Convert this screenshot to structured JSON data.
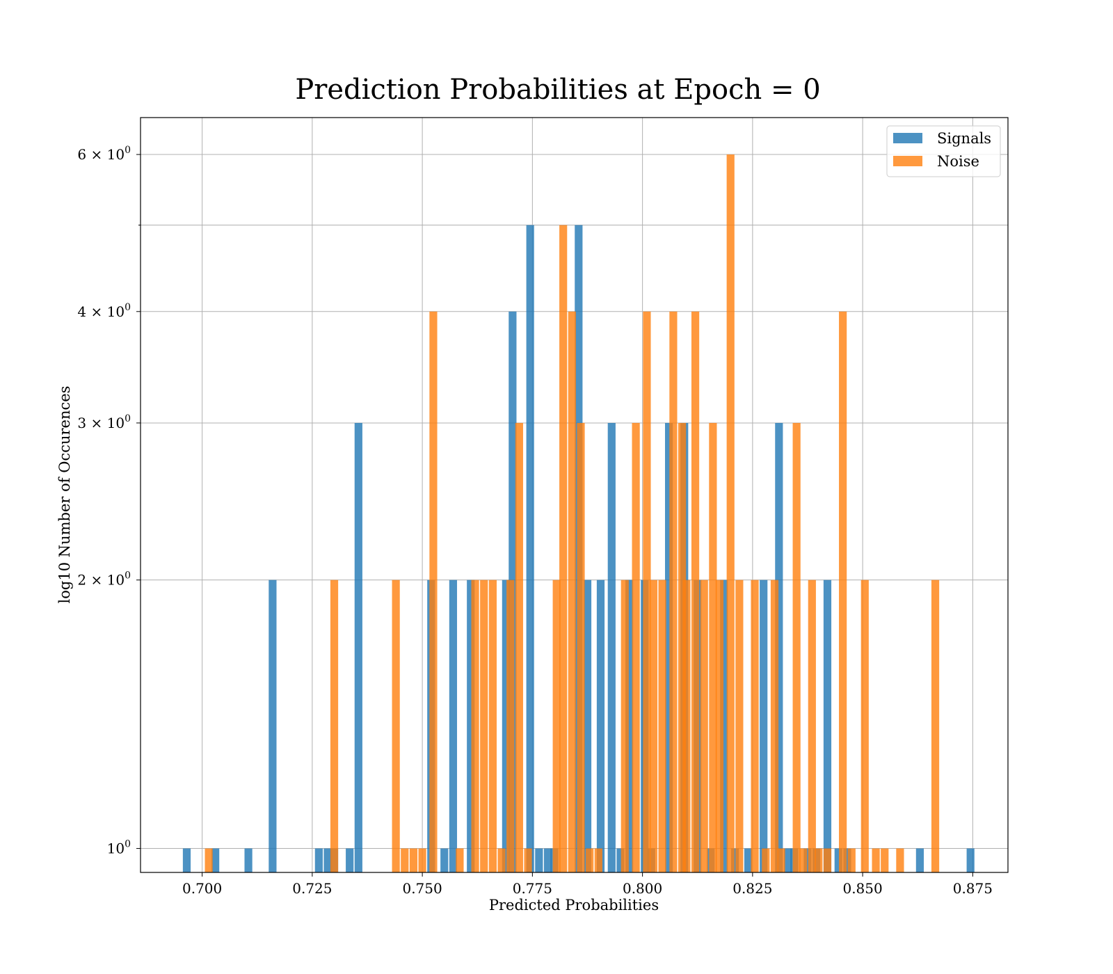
{
  "chart_data": {
    "type": "bar",
    "title": "Prediction Probabilities at Epoch = 0",
    "xlabel": "Predicted Probabilities",
    "ylabel": "log10 Number of Occurences",
    "xlim": [
      0.686,
      0.883
    ],
    "ylim": [
      0.94,
      6.6
    ],
    "yscale": "log",
    "grid": true,
    "legend_position": "top-right",
    "bin_width": 0.00177,
    "x_ticks": [
      {
        "value": 0.7,
        "label": "0.700"
      },
      {
        "value": 0.725,
        "label": "0.725"
      },
      {
        "value": 0.75,
        "label": "0.750"
      },
      {
        "value": 0.775,
        "label": "0.775"
      },
      {
        "value": 0.8,
        "label": "0.800"
      },
      {
        "value": 0.825,
        "label": "0.825"
      },
      {
        "value": 0.85,
        "label": "0.850"
      },
      {
        "value": 0.875,
        "label": "0.875"
      }
    ],
    "y_ticks": [
      {
        "value": 1,
        "base": "10",
        "exp": "0"
      },
      {
        "value": 2,
        "base": "2 × 10",
        "exp": "0"
      },
      {
        "value": 3,
        "base": "3 × 10",
        "exp": "0"
      },
      {
        "value": 4,
        "base": "4 × 10",
        "exp": "0"
      },
      {
        "value": 6,
        "base": "6 × 10",
        "exp": "0"
      }
    ],
    "y_minor_gridlines": [
      5
    ],
    "series": [
      {
        "name": "Signals",
        "color": "#1f77b4",
        "opacity": 0.8,
        "x": [
          0.6965,
          0.703,
          0.7105,
          0.716,
          0.7265,
          0.7285,
          0.73,
          0.7335,
          0.7355,
          0.752,
          0.755,
          0.757,
          0.761,
          0.769,
          0.7705,
          0.7745,
          0.7765,
          0.7785,
          0.78,
          0.7855,
          0.7875,
          0.7905,
          0.793,
          0.795,
          0.797,
          0.8005,
          0.802,
          0.806,
          0.8095,
          0.8125,
          0.8155,
          0.8185,
          0.821,
          0.824,
          0.8275,
          0.831,
          0.833,
          0.8345,
          0.8375,
          0.8395,
          0.842,
          0.8445,
          0.8465,
          0.863,
          0.8745
        ],
        "values": [
          1,
          1,
          1,
          2,
          1,
          1,
          1,
          1,
          3,
          2,
          1,
          2,
          2,
          2,
          4,
          5,
          1,
          1,
          1,
          5,
          2,
          2,
          3,
          1,
          2,
          2,
          1,
          3,
          3,
          2,
          1,
          2,
          1,
          1,
          2,
          3,
          1,
          1,
          1,
          1,
          2,
          1,
          1,
          1,
          1
        ]
      },
      {
        "name": "Noise",
        "color": "#ff7f0e",
        "opacity": 0.8,
        "x": [
          0.7015,
          0.73,
          0.744,
          0.746,
          0.748,
          0.75,
          0.7525,
          0.7585,
          0.762,
          0.764,
          0.766,
          0.768,
          0.77,
          0.772,
          0.774,
          0.7805,
          0.782,
          0.784,
          0.786,
          0.788,
          0.79,
          0.796,
          0.7985,
          0.801,
          0.8025,
          0.8045,
          0.807,
          0.809,
          0.81,
          0.812,
          0.814,
          0.816,
          0.8175,
          0.82,
          0.822,
          0.8255,
          0.828,
          0.83,
          0.8315,
          0.835,
          0.8365,
          0.8385,
          0.84,
          0.842,
          0.8455,
          0.8475,
          0.8505,
          0.853,
          0.855,
          0.8585,
          0.8665
        ],
        "values": [
          1,
          2,
          2,
          1,
          1,
          1,
          4,
          1,
          2,
          2,
          2,
          1,
          2,
          3,
          1,
          2,
          5,
          4,
          3,
          1,
          1,
          2,
          3,
          4,
          2,
          2,
          4,
          3,
          2,
          4,
          2,
          3,
          2,
          6,
          2,
          2,
          1,
          2,
          1,
          3,
          1,
          2,
          1,
          1,
          4,
          1,
          2,
          1,
          1,
          1,
          2
        ]
      }
    ]
  }
}
